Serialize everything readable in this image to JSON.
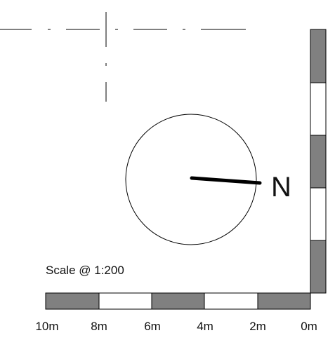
{
  "scale": {
    "label": "Scale @ 1:200",
    "ticks": [
      "10m",
      "8m",
      "6m",
      "4m",
      "2m",
      "0m"
    ]
  },
  "north_arrow": {
    "label": "N"
  },
  "colors": {
    "line": "#000000",
    "segment_fill": "#808080",
    "segment_empty": "#ffffff"
  }
}
